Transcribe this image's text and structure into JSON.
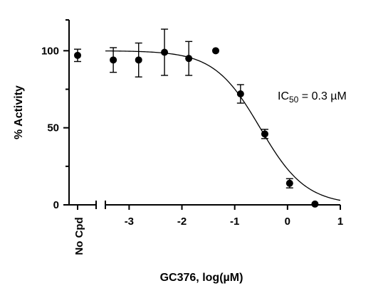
{
  "chart_data": {
    "type": "scatter",
    "title": "",
    "xlabel": "GC376, log(µM)",
    "ylabel": "% Activity",
    "x_ticks": [
      "-3",
      "-2",
      "-1",
      "0",
      "1"
    ],
    "y_ticks": [
      "0",
      "50",
      "100"
    ],
    "xlim": [
      -3.45,
      1.0
    ],
    "ylim": [
      0,
      120
    ],
    "control_label": "No Cpd",
    "control_point": {
      "y": 97,
      "err": 4
    },
    "points": [
      {
        "x": -3.3,
        "y": 94,
        "err": 8
      },
      {
        "x": -2.82,
        "y": 94,
        "err": 11
      },
      {
        "x": -2.33,
        "y": 99,
        "err": 15
      },
      {
        "x": -1.87,
        "y": 95,
        "err": 11
      },
      {
        "x": -1.36,
        "y": 100,
        "err": 0
      },
      {
        "x": -0.89,
        "y": 72,
        "err": 6
      },
      {
        "x": -0.43,
        "y": 46,
        "err": 3
      },
      {
        "x": 0.04,
        "y": 14,
        "err": 3
      },
      {
        "x": 0.52,
        "y": 0.5,
        "err": 0
      }
    ],
    "fit": {
      "top": 100,
      "bottom": 0,
      "log_ic50": -0.52,
      "hill": 1.0,
      "x_start": -3.45,
      "x_end": 1.0
    },
    "ic50_annotation": {
      "prefix": "IC",
      "sub": "50",
      "suffix": " = 0.3 µM"
    },
    "grid": false,
    "legend": "none"
  }
}
